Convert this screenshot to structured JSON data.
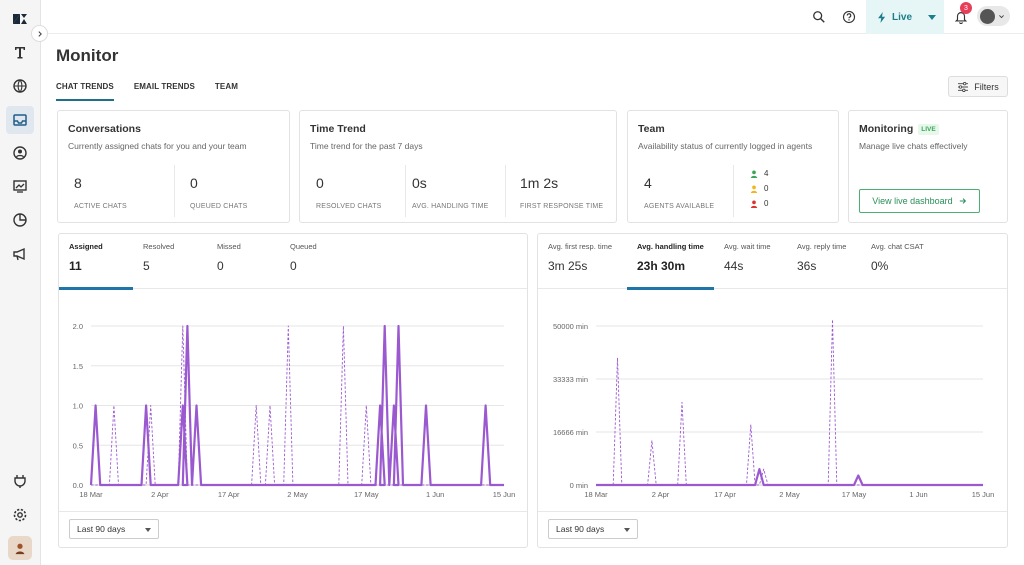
{
  "app": {
    "title": "Monitor"
  },
  "tabs": [
    {
      "label": "CHAT TRENDS",
      "active": true
    },
    {
      "label": "EMAIL TRENDS",
      "active": false
    },
    {
      "label": "TEAM",
      "active": false
    }
  ],
  "topbar": {
    "live_label": "Live",
    "notifications_count": "3"
  },
  "filters_label": "Filters",
  "cards": {
    "conversations": {
      "title": "Conversations",
      "subtitle": "Currently assigned chats for you and your team",
      "metrics": [
        {
          "value": "8",
          "label": "ACTIVE CHATS"
        },
        {
          "value": "0",
          "label": "QUEUED CHATS"
        }
      ]
    },
    "time_trend": {
      "title": "Time Trend",
      "subtitle": "Time trend for the past 7 days",
      "metrics": [
        {
          "value": "0",
          "label": "RESOLVED CHATS"
        },
        {
          "value": "0s",
          "label": "AVG. HANDLING TIME"
        },
        {
          "value": "1m 2s",
          "label": "FIRST RESPONSE TIME"
        }
      ]
    },
    "team": {
      "title": "Team",
      "subtitle": "Availability status of currently logged in agents",
      "metrics": [
        {
          "value": "4",
          "label": "AGENTS AVAILABLE"
        }
      ],
      "statuses": [
        {
          "count": "4",
          "color": "#3aa755"
        },
        {
          "count": "0",
          "color": "#f2b51c"
        },
        {
          "count": "0",
          "color": "#d9352f"
        }
      ]
    },
    "monitoring": {
      "title": "Monitoring",
      "live_tag": "LIVE",
      "subtitle": "Manage live chats effectively",
      "button_label": "View live dashboard"
    }
  },
  "left_panel": {
    "tabs": [
      {
        "label": "Assigned",
        "value": "11",
        "active": true
      },
      {
        "label": "Resolved",
        "value": "5",
        "active": false
      },
      {
        "label": "Missed",
        "value": "0",
        "active": false
      },
      {
        "label": "Queued",
        "value": "0",
        "active": false
      }
    ],
    "range": "Last 90 days"
  },
  "right_panel": {
    "tabs": [
      {
        "label": "Avg. first resp. time",
        "value": "3m 25s",
        "active": false
      },
      {
        "label": "Avg. handling time",
        "value": "23h 30m",
        "active": true
      },
      {
        "label": "Avg. wait time",
        "value": "44s",
        "active": false
      },
      {
        "label": "Avg. reply time",
        "value": "36s",
        "active": false
      },
      {
        "label": "Avg. chat CSAT",
        "value": "0%",
        "active": false
      }
    ],
    "range": "Last 90 days"
  },
  "colors": {
    "accent": "#1f75a8",
    "series": "#9b59d0",
    "live_bg": "#e6f6f6"
  },
  "chart_data": [
    {
      "type": "line",
      "x_ticks": [
        "18 Mar",
        "2 Apr",
        "17 Apr",
        "2 May",
        "17 May",
        "1 Jun",
        "15 Jun"
      ],
      "y_ticks": [
        "0.0",
        "0.5",
        "1.0",
        "1.5",
        "2.0"
      ],
      "ylim": [
        0,
        2
      ],
      "series": [
        {
          "style": "solid",
          "points": [
            [
              1,
              1
            ],
            [
              12,
              1
            ],
            [
              20,
              1
            ],
            [
              21,
              2
            ],
            [
              23,
              1
            ],
            [
              63,
              1
            ],
            [
              64,
              2
            ],
            [
              66,
              1
            ],
            [
              67,
              2
            ],
            [
              73,
              1
            ],
            [
              86,
              1
            ]
          ]
        },
        {
          "style": "dashed",
          "points": [
            [
              5,
              1
            ],
            [
              13,
              1
            ],
            [
              20,
              2
            ],
            [
              36,
              1
            ],
            [
              39,
              1
            ],
            [
              43,
              2
            ],
            [
              55,
              2
            ],
            [
              60,
              1
            ]
          ]
        }
      ]
    },
    {
      "type": "line",
      "x_ticks": [
        "18 Mar",
        "2 Apr",
        "17 Apr",
        "2 May",
        "17 May",
        "1 Jun",
        "15 Jun"
      ],
      "y_ticks": [
        "0 min",
        "16666 min",
        "33333 min",
        "50000 min"
      ],
      "ylim": [
        0,
        50000
      ],
      "series": [
        {
          "style": "solid",
          "points": [
            [
              38,
              5000
            ],
            [
              61,
              3000
            ]
          ]
        },
        {
          "style": "dashed",
          "points": [
            [
              5,
              40000
            ],
            [
              13,
              14000
            ],
            [
              20,
              26000
            ],
            [
              36,
              19000
            ],
            [
              39,
              5000
            ],
            [
              55,
              52000
            ]
          ]
        }
      ]
    }
  ]
}
